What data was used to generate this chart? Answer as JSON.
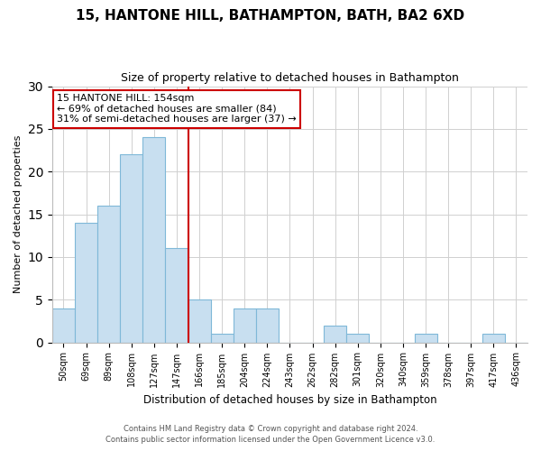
{
  "title": "15, HANTONE HILL, BATHAMPTON, BATH, BA2 6XD",
  "subtitle": "Size of property relative to detached houses in Bathampton",
  "xlabel": "Distribution of detached houses by size in Bathampton",
  "ylabel": "Number of detached properties",
  "bar_labels": [
    "50sqm",
    "69sqm",
    "89sqm",
    "108sqm",
    "127sqm",
    "147sqm",
    "166sqm",
    "185sqm",
    "204sqm",
    "224sqm",
    "243sqm",
    "262sqm",
    "282sqm",
    "301sqm",
    "320sqm",
    "340sqm",
    "359sqm",
    "378sqm",
    "397sqm",
    "417sqm",
    "436sqm"
  ],
  "bar_values": [
    4,
    14,
    16,
    22,
    24,
    11,
    5,
    1,
    4,
    4,
    0,
    0,
    2,
    1,
    0,
    0,
    1,
    0,
    0,
    1,
    0
  ],
  "bar_color": "#c8dff0",
  "bar_edge_color": "#7fb8d8",
  "marker_line_color": "#cc0000",
  "annotation_title": "15 HANTONE HILL: 154sqm",
  "annotation_line1": "← 69% of detached houses are smaller (84)",
  "annotation_line2": "31% of semi-detached houses are larger (37) →",
  "annotation_box_color": "#ffffff",
  "annotation_box_edge": "#cc0000",
  "ylim": [
    0,
    30
  ],
  "yticks": [
    0,
    5,
    10,
    15,
    20,
    25,
    30
  ],
  "footer1": "Contains HM Land Registry data © Crown copyright and database right 2024.",
  "footer2": "Contains public sector information licensed under the Open Government Licence v3.0.",
  "background_color": "#ffffff",
  "grid_color": "#d0d0d0"
}
